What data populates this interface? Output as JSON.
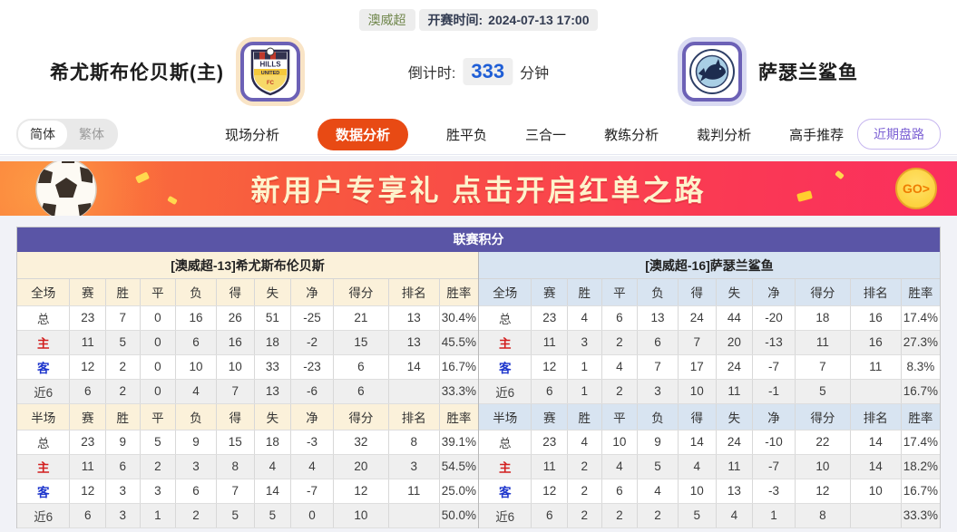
{
  "page": {
    "league_badge": "澳威超",
    "kickoff_label": "开赛时间:",
    "kickoff_time": "2024-07-13 17:00",
    "home_team": "希尤斯布伦贝斯(主)",
    "away_team": "萨瑟兰鲨鱼",
    "countdown_label": "倒计时:",
    "countdown_value": "333",
    "countdown_unit": "分钟"
  },
  "nav": {
    "lang_simplified": "简体",
    "lang_traditional": "繁体",
    "tabs": [
      {
        "label": "现场分析",
        "active": false
      },
      {
        "label": "数据分析",
        "active": true
      },
      {
        "label": "胜平负",
        "active": false
      },
      {
        "label": "三合一",
        "active": false
      },
      {
        "label": "教练分析",
        "active": false
      },
      {
        "label": "裁判分析",
        "active": false
      },
      {
        "label": "高手推荐",
        "active": false
      }
    ],
    "recent_button": "近期盘路"
  },
  "banner": {
    "headline": "新用户专享礼  点击开启红单之路",
    "go_label": "GO>"
  },
  "standings": {
    "title": "联赛积分",
    "columns_full": [
      "全场",
      "赛",
      "胜",
      "平",
      "负",
      "得",
      "失",
      "净",
      "得分",
      "排名",
      "胜率"
    ],
    "columns_half": [
      "半场",
      "赛",
      "胜",
      "平",
      "负",
      "得",
      "失",
      "净",
      "得分",
      "排名",
      "胜率"
    ],
    "home": {
      "header": "[澳威超-13]希尤斯布伦贝斯",
      "full": [
        {
          "label": "总",
          "cells": [
            "23",
            "7",
            "0",
            "16",
            "26",
            "51",
            "-25",
            "21",
            "13",
            "30.4%"
          ]
        },
        {
          "label": "主",
          "cells": [
            "11",
            "5",
            "0",
            "6",
            "16",
            "18",
            "-2",
            "15",
            "13",
            "45.5%"
          ]
        },
        {
          "label": "客",
          "cells": [
            "12",
            "2",
            "0",
            "10",
            "10",
            "33",
            "-23",
            "6",
            "14",
            "16.7%"
          ]
        },
        {
          "label": "近6",
          "cells": [
            "6",
            "2",
            "0",
            "4",
            "7",
            "13",
            "-6",
            "6",
            "",
            "33.3%"
          ]
        }
      ],
      "half": [
        {
          "label": "总",
          "cells": [
            "23",
            "9",
            "5",
            "9",
            "15",
            "18",
            "-3",
            "32",
            "8",
            "39.1%"
          ]
        },
        {
          "label": "主",
          "cells": [
            "11",
            "6",
            "2",
            "3",
            "8",
            "4",
            "4",
            "20",
            "3",
            "54.5%"
          ]
        },
        {
          "label": "客",
          "cells": [
            "12",
            "3",
            "3",
            "6",
            "7",
            "14",
            "-7",
            "12",
            "11",
            "25.0%"
          ]
        },
        {
          "label": "近6",
          "cells": [
            "6",
            "3",
            "1",
            "2",
            "5",
            "5",
            "0",
            "10",
            "",
            "50.0%"
          ]
        }
      ]
    },
    "away": {
      "header": "[澳威超-16]萨瑟兰鲨鱼",
      "full": [
        {
          "label": "总",
          "cells": [
            "23",
            "4",
            "6",
            "13",
            "24",
            "44",
            "-20",
            "18",
            "16",
            "17.4%"
          ]
        },
        {
          "label": "主",
          "cells": [
            "11",
            "3",
            "2",
            "6",
            "7",
            "20",
            "-13",
            "11",
            "16",
            "27.3%"
          ]
        },
        {
          "label": "客",
          "cells": [
            "12",
            "1",
            "4",
            "7",
            "17",
            "24",
            "-7",
            "7",
            "11",
            "8.3%"
          ]
        },
        {
          "label": "近6",
          "cells": [
            "6",
            "1",
            "2",
            "3",
            "10",
            "11",
            "-1",
            "5",
            "",
            "16.7%"
          ]
        }
      ],
      "half": [
        {
          "label": "总",
          "cells": [
            "23",
            "4",
            "10",
            "9",
            "14",
            "24",
            "-10",
            "22",
            "14",
            "17.4%"
          ]
        },
        {
          "label": "主",
          "cells": [
            "11",
            "2",
            "4",
            "5",
            "4",
            "11",
            "-7",
            "10",
            "14",
            "18.2%"
          ]
        },
        {
          "label": "客",
          "cells": [
            "12",
            "2",
            "6",
            "4",
            "10",
            "13",
            "-3",
            "12",
            "10",
            "16.7%"
          ]
        },
        {
          "label": "近6",
          "cells": [
            "6",
            "2",
            "2",
            "2",
            "5",
            "4",
            "1",
            "8",
            "",
            "33.3%"
          ]
        }
      ]
    }
  },
  "colors": {
    "header_purple": "#5a55a6",
    "active_tab_orange": "#e84a14",
    "home_section_cream": "#fbf1da",
    "away_section_blue": "#d8e4f1",
    "home_row_red": "#d21f1f",
    "away_row_blue": "#1d35cc",
    "countdown_blue": "#1f5ed6",
    "recent_button_purple": "#7d62d4",
    "league_badge_green": "#72884e"
  }
}
